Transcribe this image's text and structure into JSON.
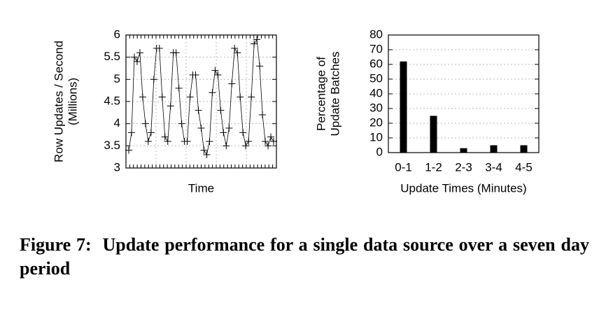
{
  "chart_data": [
    {
      "type": "line",
      "xlabel": "Time",
      "ylabel": [
        "Row Updates / Second",
        "(Millions)"
      ],
      "color": "#000000",
      "grid": true,
      "values": [
        3.4,
        3.8,
        5.5,
        5.4,
        5.6,
        4.6,
        4.0,
        3.6,
        3.8,
        5.0,
        5.7,
        5.7,
        4.6,
        3.7,
        3.6,
        4.4,
        5.6,
        5.6,
        4.8,
        4.0,
        3.6,
        3.6,
        4.6,
        5.1,
        5.1,
        4.3,
        3.9,
        3.4,
        3.3,
        3.6,
        4.7,
        5.2,
        5.1,
        4.3,
        3.8,
        3.5,
        3.9,
        4.9,
        5.7,
        5.6,
        4.6,
        3.8,
        3.5,
        3.6,
        4.6,
        5.8,
        5.9,
        5.3,
        4.2,
        3.6,
        3.5,
        3.7,
        3.6
      ],
      "ylim": [
        3,
        6
      ],
      "yticks": [
        3,
        3.5,
        4,
        4.5,
        5,
        5.5,
        6
      ]
    },
    {
      "type": "bar",
      "xlabel": "Update Times (Minutes)",
      "ylabel": [
        "Percentage of",
        "Update Batches"
      ],
      "color": "#000000",
      "grid": true,
      "categories": [
        "0-1",
        "1-2",
        "2-3",
        "3-4",
        "4-5"
      ],
      "values": [
        62,
        25,
        3,
        5,
        5
      ],
      "ylim": [
        0,
        80
      ],
      "yticks": [
        0,
        10,
        20,
        30,
        40,
        50,
        60,
        70,
        80
      ]
    }
  ],
  "caption": "Figure 7:  Update performance for a single data source over a seven day period"
}
